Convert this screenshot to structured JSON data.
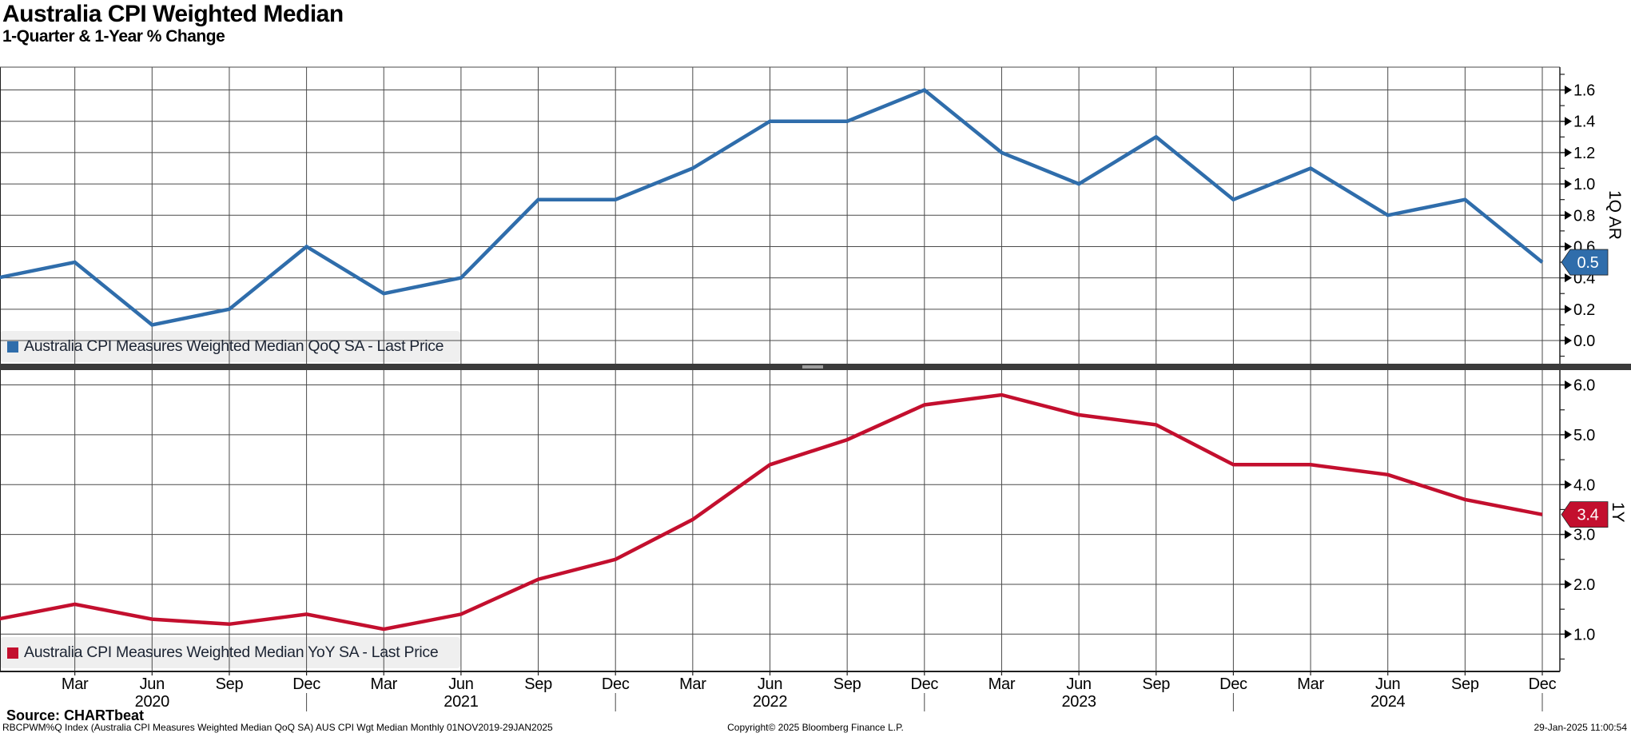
{
  "title": "Australia CPI Weighted Median",
  "subtitle": "1-Quarter & 1-Year % Change",
  "top_panel": {
    "legend_label": "Australia CPI Measures Weighted Median QoQ SA - Last Price",
    "axis_label": "1Q AR",
    "last_price": "0.5",
    "yticks": [
      "1.6",
      "1.4",
      "1.2",
      "1.0",
      "0.8",
      "0.6",
      "0.4",
      "0.2",
      "0.0"
    ]
  },
  "bottom_panel": {
    "legend_label": "Australia CPI Measures Weighted Median YoY SA - Last Price",
    "axis_label": "1Y",
    "last_price": "3.4",
    "yticks": [
      "6.0",
      "5.0",
      "4.0",
      "3.0",
      "2.0",
      "1.0"
    ]
  },
  "x_axis": {
    "quarters": [
      {
        "m": "Mar"
      },
      {
        "m": "Jun",
        "year": "2020"
      },
      {
        "m": "Sep"
      },
      {
        "m": "Dec",
        "boundary": true
      },
      {
        "m": "Mar"
      },
      {
        "m": "Jun",
        "year": "2021"
      },
      {
        "m": "Sep"
      },
      {
        "m": "Dec",
        "boundary": true
      },
      {
        "m": "Mar"
      },
      {
        "m": "Jun",
        "year": "2022"
      },
      {
        "m": "Sep"
      },
      {
        "m": "Dec",
        "boundary": true
      },
      {
        "m": "Mar"
      },
      {
        "m": "Jun",
        "year": "2023"
      },
      {
        "m": "Sep"
      },
      {
        "m": "Dec",
        "boundary": true
      },
      {
        "m": "Mar"
      },
      {
        "m": "Jun",
        "year": "2024"
      },
      {
        "m": "Sep"
      },
      {
        "m": "Dec",
        "boundary": true
      }
    ]
  },
  "footer": {
    "source": "Source: CHARTbeat",
    "security_info": "RBCPWM%Q Index (Australia CPI Measures Weighted Median QoQ SA) AUS CPI Wgt Median  Monthly 01NOV2019-29JAN2025",
    "copyright": "Copyright© 2025 Bloomberg Finance L.P.",
    "timestamp": "29-Jan-2025 11:00:54"
  },
  "colors": {
    "qoq_line": "#2f6dab",
    "yoy_line": "#c30f2e",
    "grid": "#4a4a4a",
    "axis": "#1f1f1f",
    "legend_bg": "#efefef",
    "legend_text": "#1c2433",
    "separator": "#3b3b3b",
    "badge_text": "#ffffff"
  },
  "chart_data": [
    {
      "type": "line",
      "panel": "top",
      "name": "Australia CPI Measures Weighted Median QoQ SA - Last Price",
      "color": "#2f6dab",
      "categories": [
        "Dec 2019",
        "Mar 2020",
        "Jun 2020",
        "Sep 2020",
        "Dec 2020",
        "Mar 2021",
        "Jun 2021",
        "Sep 2021",
        "Dec 2021",
        "Mar 2022",
        "Jun 2022",
        "Sep 2022",
        "Dec 2022",
        "Mar 2023",
        "Jun 2023",
        "Sep 2023",
        "Dec 2023",
        "Mar 2024",
        "Jun 2024",
        "Sep 2024",
        "Dec 2024"
      ],
      "values": [
        0.4,
        0.5,
        0.1,
        0.2,
        0.6,
        0.3,
        0.4,
        0.9,
        0.9,
        1.1,
        1.4,
        1.4,
        1.6,
        1.2,
        1.0,
        1.3,
        0.9,
        1.1,
        0.8,
        0.9,
        0.5
      ],
      "ylabel": "1Q AR",
      "ylim": [
        -0.15,
        1.75
      ],
      "ytick_step": 0.2,
      "last_price": 0.5,
      "grid": true,
      "legend_position": "bottom-left"
    },
    {
      "type": "line",
      "panel": "bottom",
      "name": "Australia CPI Measures Weighted Median YoY SA - Last Price",
      "color": "#c30f2e",
      "categories": [
        "Dec 2019",
        "Mar 2020",
        "Jun 2020",
        "Sep 2020",
        "Dec 2020",
        "Mar 2021",
        "Jun 2021",
        "Sep 2021",
        "Dec 2021",
        "Mar 2022",
        "Jun 2022",
        "Sep 2022",
        "Dec 2022",
        "Mar 2023",
        "Jun 2023",
        "Sep 2023",
        "Dec 2023",
        "Mar 2024",
        "Jun 2024",
        "Sep 2024",
        "Dec 2024"
      ],
      "values": [
        1.3,
        1.6,
        1.3,
        1.2,
        1.4,
        1.1,
        1.4,
        2.1,
        2.5,
        3.3,
        4.4,
        4.9,
        5.6,
        5.8,
        5.4,
        5.2,
        4.4,
        4.4,
        4.2,
        3.7,
        3.4
      ],
      "ylabel": "1Y",
      "ylim": [
        0.25,
        6.3
      ],
      "ytick_step": 1.0,
      "last_price": 3.4,
      "grid": true,
      "legend_position": "bottom-left"
    }
  ]
}
